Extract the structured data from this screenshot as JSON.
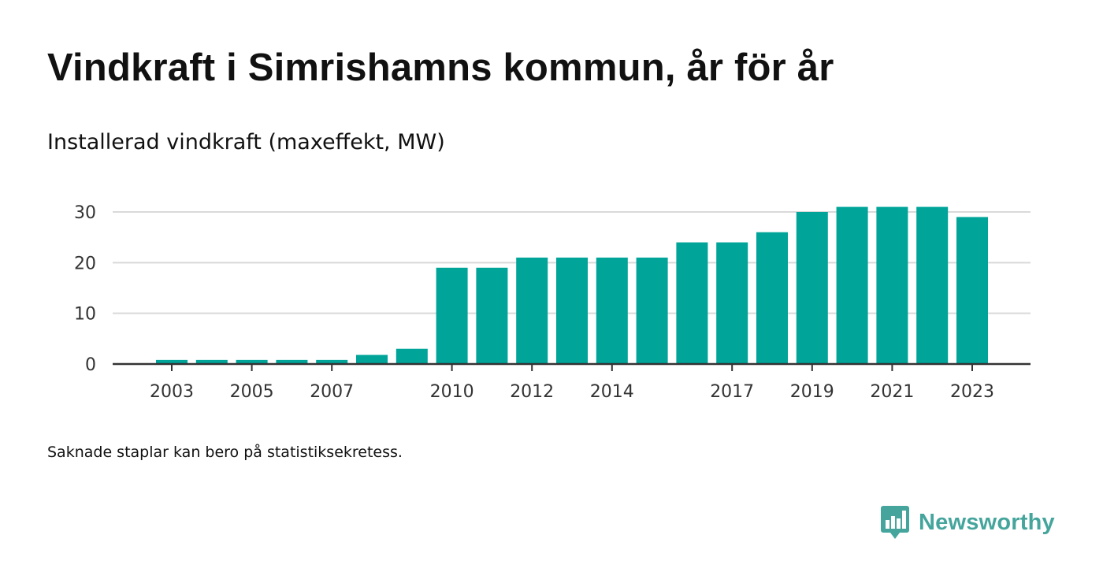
{
  "header": {
    "title": "Vindkraft i Simrishamns kommun, år för år",
    "subtitle": "Installerad vindkraft (maxeffekt, MW)"
  },
  "footer": {
    "note": "Saknade staplar kan bero på statistiksekretess.",
    "brand": "Newsworthy",
    "brand_icon": "newsworthy-logo-icon"
  },
  "colors": {
    "bar": "#00a499",
    "brand": "#45a59d",
    "grid": "#d9d9d9",
    "axis": "#333333"
  },
  "chart_data": {
    "type": "bar",
    "x": [
      2003,
      2004,
      2005,
      2006,
      2007,
      2008,
      2009,
      2010,
      2011,
      2012,
      2013,
      2014,
      2015,
      2016,
      2017,
      2018,
      2019,
      2020,
      2021,
      2022,
      2023
    ],
    "values": [
      0.8,
      0.8,
      0.8,
      0.8,
      0.8,
      1.8,
      3,
      19,
      19,
      21,
      21,
      21,
      21,
      24,
      24,
      26,
      30,
      31,
      31,
      31,
      29
    ],
    "x_tick_labels": [
      "2003",
      "2005",
      "2007",
      "2010",
      "2012",
      "2014",
      "2017",
      "2019",
      "2021",
      "2023"
    ],
    "y_ticks": [
      0,
      10,
      20,
      30
    ],
    "ylim": [
      0,
      31
    ],
    "xlabel": "",
    "ylabel": "",
    "grid": true,
    "legend": false
  }
}
